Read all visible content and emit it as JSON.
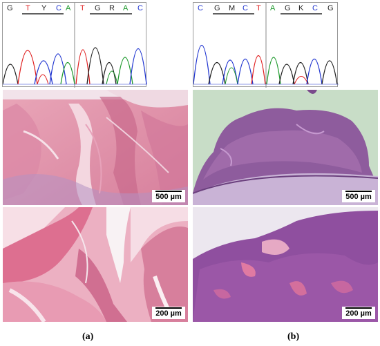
{
  "colors": {
    "A": "#1f9a2e",
    "C": "#2035d0",
    "G": "#222222",
    "T": "#e02020"
  },
  "panel_a": {
    "caption": "(a)",
    "sequence_left": [
      "G",
      "T",
      "Y",
      "C",
      "A"
    ],
    "sequence_right": [
      "T",
      "G",
      "R",
      "A",
      "C"
    ],
    "scale_bar_top": "500 µm",
    "scale_bar_bottom": "200 µm"
  },
  "panel_b": {
    "caption": "(b)",
    "sequence_left": [
      "C",
      "G",
      "M",
      "C",
      "T"
    ],
    "sequence_right": [
      "A",
      "G",
      "K",
      "C",
      "G"
    ],
    "scale_bar_top": "500 µm",
    "scale_bar_bottom": "200 µm"
  }
}
